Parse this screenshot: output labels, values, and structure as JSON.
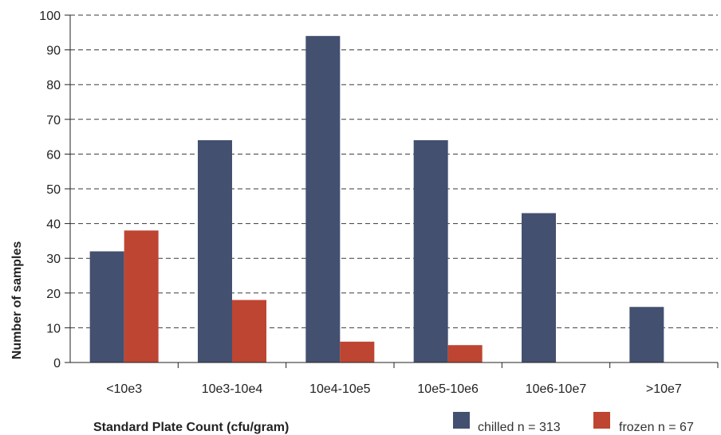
{
  "chart_data": {
    "type": "bar",
    "title": "",
    "xlabel": "Standard Plate Count (cfu/gram)",
    "ylabel": "Number of samples",
    "ylim": [
      0,
      100
    ],
    "yticks": [
      0,
      10,
      20,
      30,
      40,
      50,
      60,
      70,
      80,
      90,
      100
    ],
    "grid": true,
    "legend_position": "bottom-right",
    "categories": [
      "<10e3",
      "10e3-10e4",
      "10e4-10e5",
      "10e5-10e6",
      "10e6-10e7",
      ">10e7"
    ],
    "series": [
      {
        "name": "chilled n = 313",
        "color": "#435070",
        "values": [
          32,
          64,
          94,
          64,
          43,
          16
        ]
      },
      {
        "name": "frozen n = 67",
        "color": "#be4532",
        "values": [
          38,
          18,
          6,
          5,
          0,
          0
        ]
      }
    ]
  }
}
